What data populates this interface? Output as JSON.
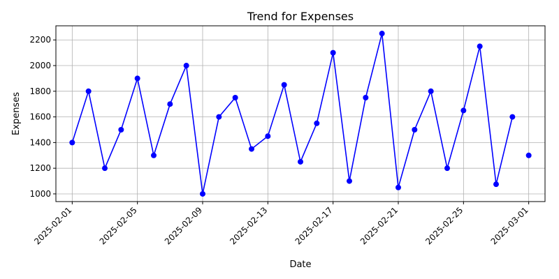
{
  "chart_data": {
    "type": "line",
    "title": "Trend for Expenses",
    "xlabel": "Date",
    "ylabel": "Expenses",
    "x": [
      "2025-02-01",
      "2025-02-02",
      "2025-02-03",
      "2025-02-04",
      "2025-02-05",
      "2025-02-06",
      "2025-02-07",
      "2025-02-08",
      "2025-02-09",
      "2025-02-10",
      "2025-02-11",
      "2025-02-12",
      "2025-02-13",
      "2025-02-14",
      "2025-02-15",
      "2025-02-16",
      "2025-02-17",
      "2025-02-18",
      "2025-02-19",
      "2025-02-20",
      "2025-02-21",
      "2025-02-22",
      "2025-02-23",
      "2025-02-24",
      "2025-02-25",
      "2025-02-26",
      "2025-02-27",
      "2025-02-28",
      "2025-03-01"
    ],
    "series": [
      {
        "color": "#0000ff",
        "values": [
          1400,
          1800,
          1200,
          1500,
          1900,
          1300,
          1700,
          2000,
          1000,
          1600,
          1750,
          1350,
          1450,
          1850,
          1250,
          1550,
          2100,
          1100,
          1750,
          2250,
          1050,
          1500,
          1800,
          1200,
          1650,
          2150,
          1075,
          1600,
          1300
        ]
      }
    ],
    "line_breaks_before": [
      "2025-03-01"
    ],
    "x_ticks": [
      "2025-02-01",
      "2025-02-05",
      "2025-02-09",
      "2025-02-13",
      "2025-02-17",
      "2025-02-21",
      "2025-02-25",
      "2025-03-01"
    ],
    "y_ticks": [
      1000,
      1200,
      1400,
      1600,
      1800,
      2000,
      2200
    ],
    "ylim": [
      940,
      2310
    ],
    "xlim": [
      "2025-01-31",
      "2025-03-02"
    ],
    "grid": true
  }
}
